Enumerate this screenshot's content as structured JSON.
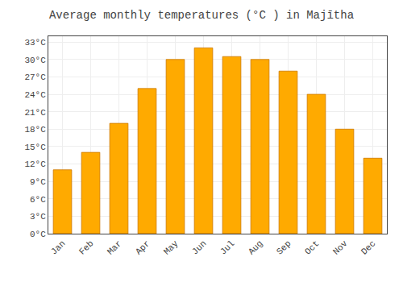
{
  "chart_data": {
    "type": "bar",
    "title": "Average monthly temperatures (°C ) in Majītha",
    "categories": [
      "Jan",
      "Feb",
      "Mar",
      "Apr",
      "May",
      "Jun",
      "Jul",
      "Aug",
      "Sep",
      "Oct",
      "Nov",
      "Dec"
    ],
    "values": [
      11,
      14,
      19,
      25,
      30,
      32,
      30.5,
      30,
      28,
      24,
      18,
      13
    ],
    "color": "#FFAA00",
    "ylim": [
      0,
      34
    ],
    "yticks": [
      {
        "value": 0,
        "label": "0°C"
      },
      {
        "value": 3,
        "label": "3°C"
      },
      {
        "value": 6,
        "label": "6°C"
      },
      {
        "value": 9,
        "label": "9°C"
      },
      {
        "value": 12,
        "label": "12°C"
      },
      {
        "value": 15,
        "label": "15°C"
      },
      {
        "value": 18,
        "label": "18°C"
      },
      {
        "value": 21,
        "label": "21°C"
      },
      {
        "value": 24,
        "label": "24°C"
      },
      {
        "value": 27,
        "label": "27°C"
      },
      {
        "value": 30,
        "label": "30°C"
      },
      {
        "value": 33,
        "label": "33°C"
      }
    ],
    "grid": true
  }
}
